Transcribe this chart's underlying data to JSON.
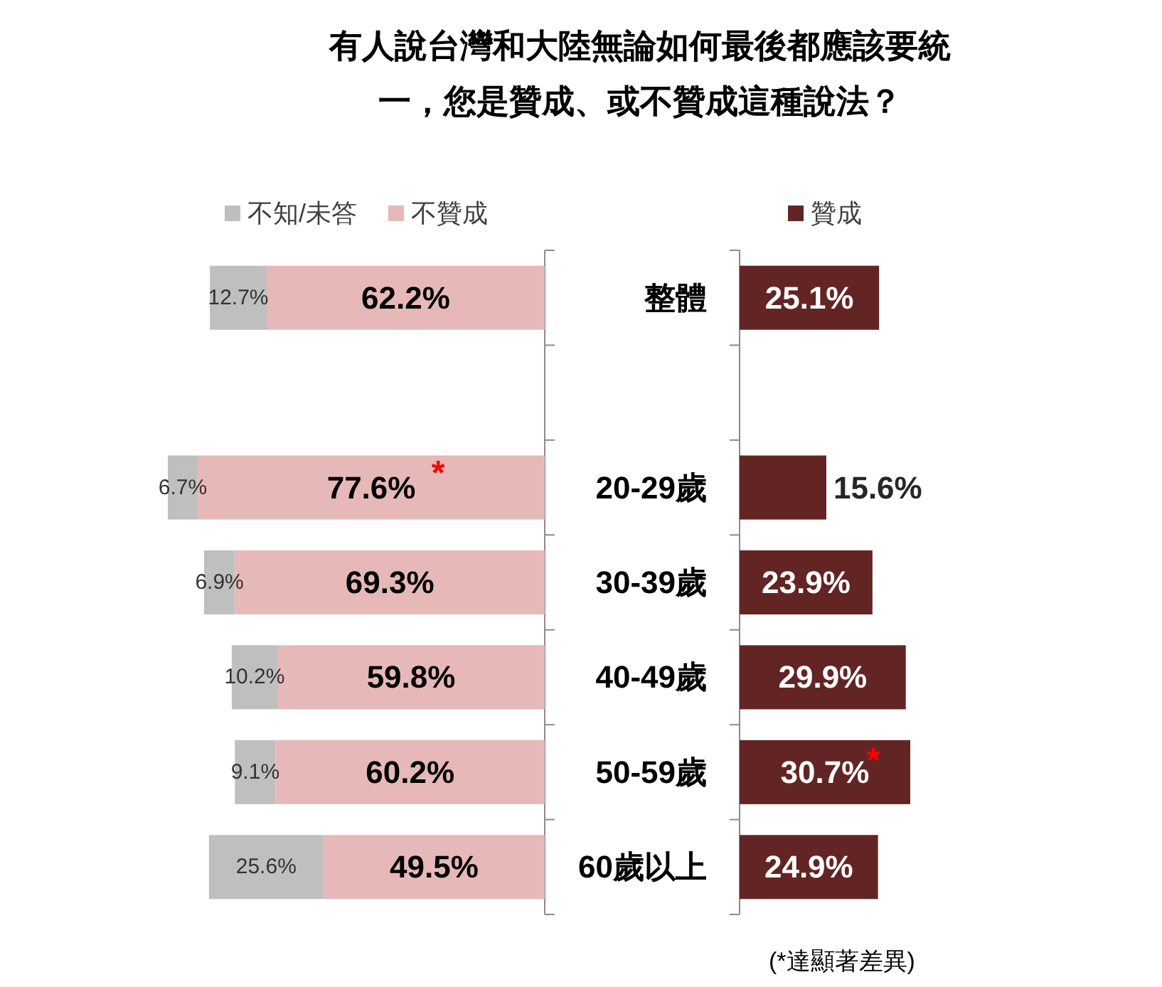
{
  "chart_data": [
    {
      "type": "bar",
      "title": "有人說台灣和大陸無論如何最後都應該要統一，您是贊成、或不贊成這種說法？",
      "orientation": "horizontal",
      "stacked": true,
      "categories": [
        "整體",
        null,
        "20-29歲",
        "30-39歲",
        "40-49歲",
        "50-59歲",
        "60歲以上"
      ],
      "series": [
        {
          "name": "不贊成",
          "color": "#e6b9b8",
          "values": [
            62.2,
            null,
            77.6,
            69.3,
            59.8,
            60.2,
            49.5
          ],
          "value_labels": [
            "62.2%",
            null,
            "77.6%",
            "69.3%",
            "59.8%",
            "60.2%",
            "49.5%"
          ]
        },
        {
          "name": "不知/未答",
          "color": "#bfbfbf",
          "values": [
            12.7,
            null,
            6.7,
            6.9,
            10.2,
            9.1,
            25.6
          ],
          "value_labels": [
            "12.7%",
            null,
            "6.7%",
            "6.9%",
            "10.2%",
            "9.1%",
            "25.6%"
          ]
        }
      ],
      "legend": "top",
      "annotations": [
        "*"
      ]
    },
    {
      "type": "bar",
      "orientation": "horizontal",
      "categories": [
        "整體",
        null,
        "20-29歲",
        "30-39歲",
        "40-49歲",
        "50-59歲",
        "60歲以上"
      ],
      "series": [
        {
          "name": "贊成",
          "color": "#632523",
          "values": [
            25.1,
            null,
            15.6,
            23.9,
            29.9,
            30.7,
            24.9
          ],
          "value_labels": [
            "25.1%",
            null,
            "15.6%",
            "23.9%",
            "29.9%",
            "30.7%",
            "24.9%"
          ]
        }
      ],
      "legend": "top",
      "tick_labels": false,
      "annotations": [
        "*",
        "(*達顯著差異)"
      ]
    }
  ]
}
